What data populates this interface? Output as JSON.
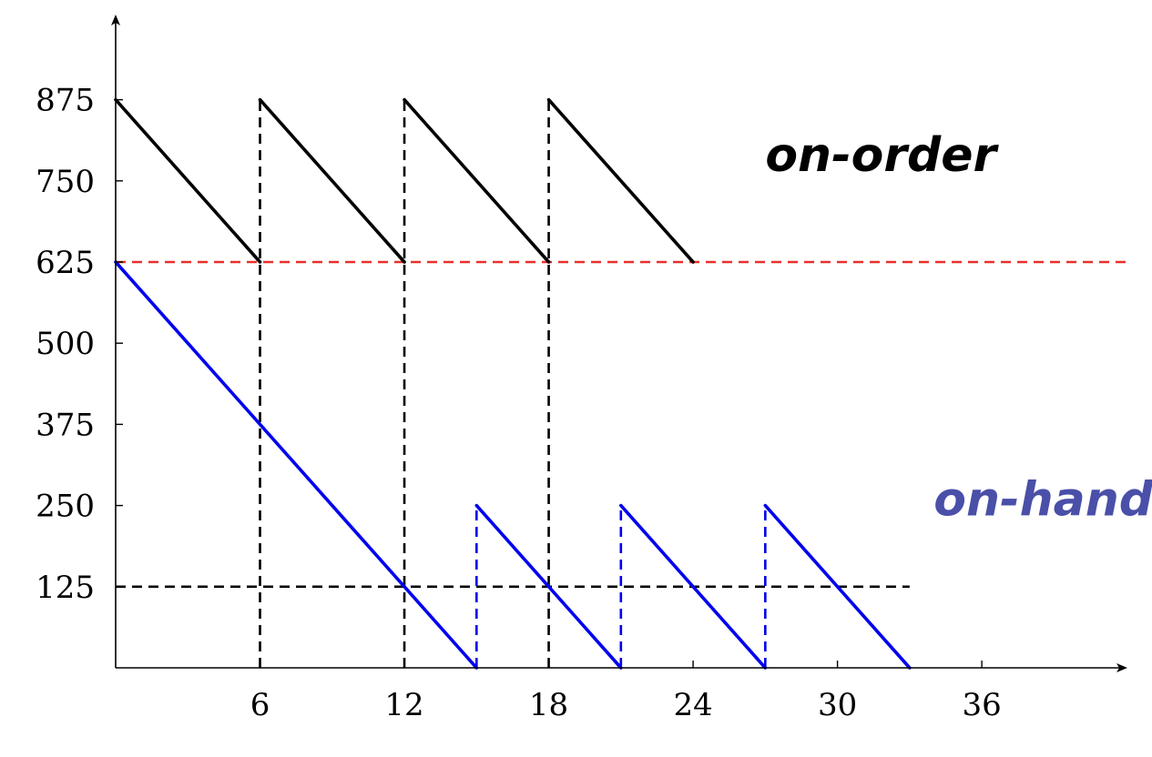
{
  "chart_data": {
    "type": "line",
    "title": "",
    "xlabel": "",
    "ylabel": "",
    "xlim": [
      0,
      42
    ],
    "ylim": [
      0,
      1000
    ],
    "grid": false,
    "x_ticks": [
      6,
      12,
      18,
      24,
      30,
      36
    ],
    "y_ticks": [
      125,
      250,
      375,
      500,
      625,
      750,
      875
    ],
    "colors": {
      "on_order": "#000000",
      "on_hand": "#0000ee",
      "target": "#e8302a",
      "reorder": "#000000",
      "on_hand_label": "#4a4fa8"
    },
    "annotations": [
      {
        "id": "on_order",
        "text": "on-order",
        "x": 27,
        "y": 765
      },
      {
        "id": "on_hand",
        "text": "on-hand",
        "x": 34,
        "y": 235
      }
    ],
    "series": [
      {
        "id": "on_order",
        "style": "solid",
        "segments": [
          [
            [
              0,
              875
            ],
            [
              6,
              625
            ]
          ],
          [
            [
              6,
              875
            ],
            [
              12,
              625
            ]
          ],
          [
            [
              12,
              875
            ],
            [
              18,
              625
            ]
          ],
          [
            [
              18,
              875
            ],
            [
              24,
              625
            ]
          ]
        ]
      },
      {
        "id": "on_hand",
        "style": "solid",
        "segments": [
          [
            [
              0,
              625
            ],
            [
              15,
              0
            ]
          ],
          [
            [
              15,
              250
            ],
            [
              21,
              0
            ]
          ],
          [
            [
              21,
              250
            ],
            [
              27,
              0
            ]
          ],
          [
            [
              27,
              250
            ],
            [
              33,
              0
            ]
          ]
        ]
      }
    ],
    "reference_lines": [
      {
        "id": "target",
        "orientation": "horizontal",
        "y": 625,
        "x_from": 0,
        "x_to": 42,
        "style": "dashed"
      },
      {
        "id": "reorder",
        "orientation": "horizontal",
        "y": 125,
        "x_from": 0,
        "x_to": 33,
        "style": "dashed"
      },
      {
        "id": "order-6",
        "orientation": "vertical",
        "x": 6,
        "y_from": 0,
        "y_to": 875,
        "style": "dashed"
      },
      {
        "id": "order-12",
        "orientation": "vertical",
        "x": 12,
        "y_from": 0,
        "y_to": 875,
        "style": "dashed"
      },
      {
        "id": "order-18",
        "orientation": "vertical",
        "x": 18,
        "y_from": 0,
        "y_to": 875,
        "style": "dashed"
      },
      {
        "id": "arrival-15",
        "orientation": "vertical",
        "x": 15,
        "y_from": 0,
        "y_to": 250,
        "style": "dashed",
        "color_key": "on_hand"
      },
      {
        "id": "arrival-21",
        "orientation": "vertical",
        "x": 21,
        "y_from": 0,
        "y_to": 250,
        "style": "dashed",
        "color_key": "on_hand"
      },
      {
        "id": "arrival-27",
        "orientation": "vertical",
        "x": 27,
        "y_from": 0,
        "y_to": 250,
        "style": "dashed",
        "color_key": "on_hand"
      }
    ]
  }
}
